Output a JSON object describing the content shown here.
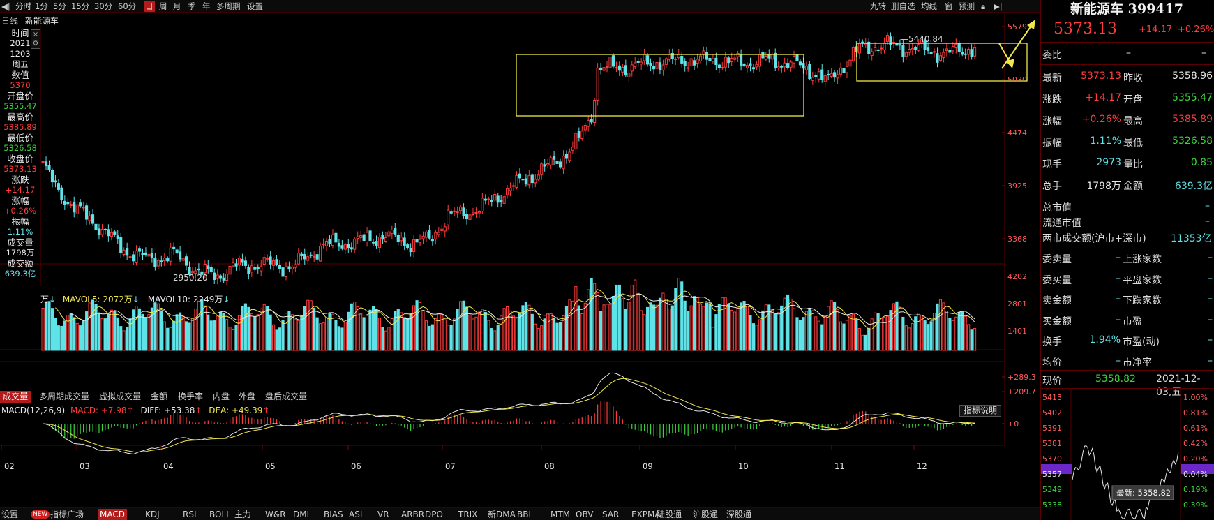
{
  "toolbar": {
    "left_items": [
      "分时",
      "1分",
      "5分",
      "15分",
      "30分",
      "60分",
      "日",
      "周",
      "月",
      "季",
      "年",
      "多周期",
      "设置"
    ],
    "active": "日",
    "right_items": [
      "九转",
      "删自选",
      "均线",
      "窗",
      "预测"
    ]
  },
  "chart_header": {
    "period": "日线",
    "name": "新能源车"
  },
  "left_info": {
    "rows": [
      {
        "label": "时间",
        "value": "2021"
      },
      {
        "label": "",
        "value": "1203"
      },
      {
        "label": "",
        "value": "周五"
      },
      {
        "label": "数值",
        "value": "5370"
      },
      {
        "label": "开盘价",
        "value": "5355.47"
      },
      {
        "label": "最高价",
        "value": "5385.89"
      },
      {
        "label": "最低价",
        "value": "5326.58"
      },
      {
        "label": "收盘价",
        "value": "5373.13"
      },
      {
        "label": "涨跌",
        "value": "+14.17"
      },
      {
        "label": "涨幅",
        "value": "+0.26%"
      },
      {
        "label": "振幅",
        "value": "1.11%"
      },
      {
        "label": "成交量",
        "value": "1798万"
      },
      {
        "label": "成交额",
        "value": "639.3亿"
      }
    ]
  },
  "price_axis": [
    "5579",
    "5030",
    "4474",
    "3925",
    "3368"
  ],
  "annotations": {
    "high": "5440.84",
    "low": "2950.20"
  },
  "volume_legend": {
    "prefix": "万",
    "mavol5": "MAVOL5: 2072万",
    "mavol10": "MAVOL10: 2249万"
  },
  "volume_axis": [
    "4202",
    "2801",
    "1401"
  ],
  "volume_tabs": [
    "成交量",
    "多周期成交量",
    "虚拟成交量",
    "金额",
    "换手率",
    "内盘",
    "外盘",
    "盘后成交量"
  ],
  "macd_legend": {
    "title": "MACD(12,26,9)",
    "macd": "MACD: +7.98",
    "diff": "DIFF: +53.38",
    "dea": "DEA: +49.39"
  },
  "macd_axis": [
    "+289.3",
    "+209.7",
    "+0"
  ],
  "indicator_button": "指标说明",
  "month_axis": [
    "02",
    "03",
    "04",
    "05",
    "06",
    "07",
    "08",
    "09",
    "10",
    "11",
    "12"
  ],
  "bottom_tabs": [
    "设置",
    "指标广场",
    "MACD",
    "KDJ",
    "RSI",
    "BOLL",
    "主力",
    "W&R",
    "DMI",
    "BIAS",
    "ASI",
    "VR",
    "ARBR",
    "DPO",
    "TRIX",
    "新DMA",
    "BBI",
    "MTM",
    "OBV",
    "SAR",
    "EXPMA",
    "陆股通",
    "沪股通",
    "深股通"
  ],
  "bottom_active": "MACD",
  "new_badge": "NEW",
  "quote": {
    "name": "新能源车 399417",
    "price": "5373.13",
    "change": "+14.17",
    "change_pct": "+0.26%",
    "weibi_label": "委比",
    "weibi_value": "–",
    "weibi_value2": "–",
    "rows": [
      {
        "l1": "最新",
        "v1": "5373.13",
        "l2": "昨收",
        "v2": "5358.96"
      },
      {
        "l1": "涨跌",
        "v1": "+14.17",
        "l2": "开盘",
        "v2": "5355.47"
      },
      {
        "l1": "涨幅",
        "v1": "+0.26%",
        "l2": "最高",
        "v2": "5385.89"
      },
      {
        "l1": "振幅",
        "v1": "1.11%",
        "l2": "最低",
        "v2": "5326.58"
      },
      {
        "l1": "现手",
        "v1": "2973",
        "l2": "量比",
        "v2": "0.85"
      },
      {
        "l1": "总手",
        "v1": "1798万",
        "l2": "金额",
        "v2": "639.3亿"
      }
    ],
    "total_cap": "总市值",
    "float_cap": "流通市值",
    "two_market": "两市成交额(沪市+深市)",
    "two_market_value": "11353亿",
    "dash": "–",
    "breadth": [
      {
        "l1": "委卖量",
        "l2": "上涨家数"
      },
      {
        "l1": "委买量",
        "l2": "平盘家数"
      },
      {
        "l1": "卖金额",
        "l2": "下跌家数"
      },
      {
        "l1": "买金额",
        "l2": "市盈"
      },
      {
        "l1": "换手",
        "l2": "市盈(动)"
      },
      {
        "l1": "均价",
        "l2": "市净率"
      }
    ],
    "turnover": "1.94%",
    "current_label": "现价",
    "current_value": "5358.82",
    "date": "2021-12-03,五"
  },
  "mini_chart": {
    "left_axis": [
      "5413",
      "5402",
      "5391",
      "5381",
      "5370",
      "5357",
      "5349",
      "5338"
    ],
    "right_axis": [
      "1.00%",
      "0.81%",
      "0.61%",
      "0.42%",
      "0.20%",
      "0.04%",
      "0.19%",
      "0.39%"
    ],
    "tooltip": "最新: 5358.82"
  }
}
